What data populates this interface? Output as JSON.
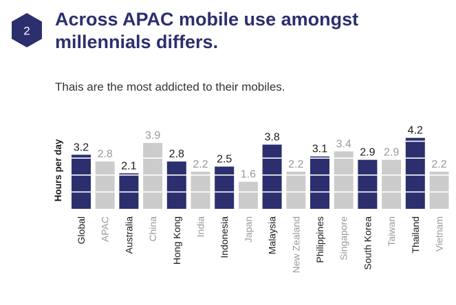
{
  "badge": {
    "number": "2"
  },
  "title": "Across APAC mobile use amongst\nmillennials differs.",
  "subtitle": "Thais are the most addicted to their mobiles.",
  "colors": {
    "accent": "#2c2f6e",
    "grey_bar": "#cccccc",
    "grey_text": "#999999",
    "dark_text": "#1a1a1a"
  },
  "chart_data": {
    "type": "bar",
    "ylabel": "Hours per day",
    "categories": [
      "Global",
      "APAC",
      "Australia",
      "China",
      "Hong Kong",
      "India",
      "Indonesia",
      "Japan",
      "Malaysia",
      "New Zealand",
      "Philippines",
      "Singapore",
      "South Korea",
      "Taiwan",
      "Thailand",
      "Vietnam"
    ],
    "values": [
      3.2,
      2.8,
      2.1,
      3.9,
      2.8,
      2.2,
      2.5,
      1.6,
      3.8,
      2.2,
      3.1,
      3.4,
      2.9,
      2.9,
      4.2,
      2.2
    ],
    "value_labels": [
      "3.2",
      "2.8",
      "2.1",
      "3.9",
      "2.8",
      "2.2",
      "2.5",
      "1.6",
      "3.8",
      "2.2",
      "3.1",
      "3.4",
      "2.9",
      "2.9",
      "4.2",
      "2.2"
    ],
    "highlighted": [
      true,
      false,
      true,
      false,
      true,
      false,
      true,
      false,
      true,
      false,
      true,
      false,
      true,
      false,
      true,
      false
    ],
    "segment_size": 1,
    "grid": false,
    "legend": "none"
  }
}
